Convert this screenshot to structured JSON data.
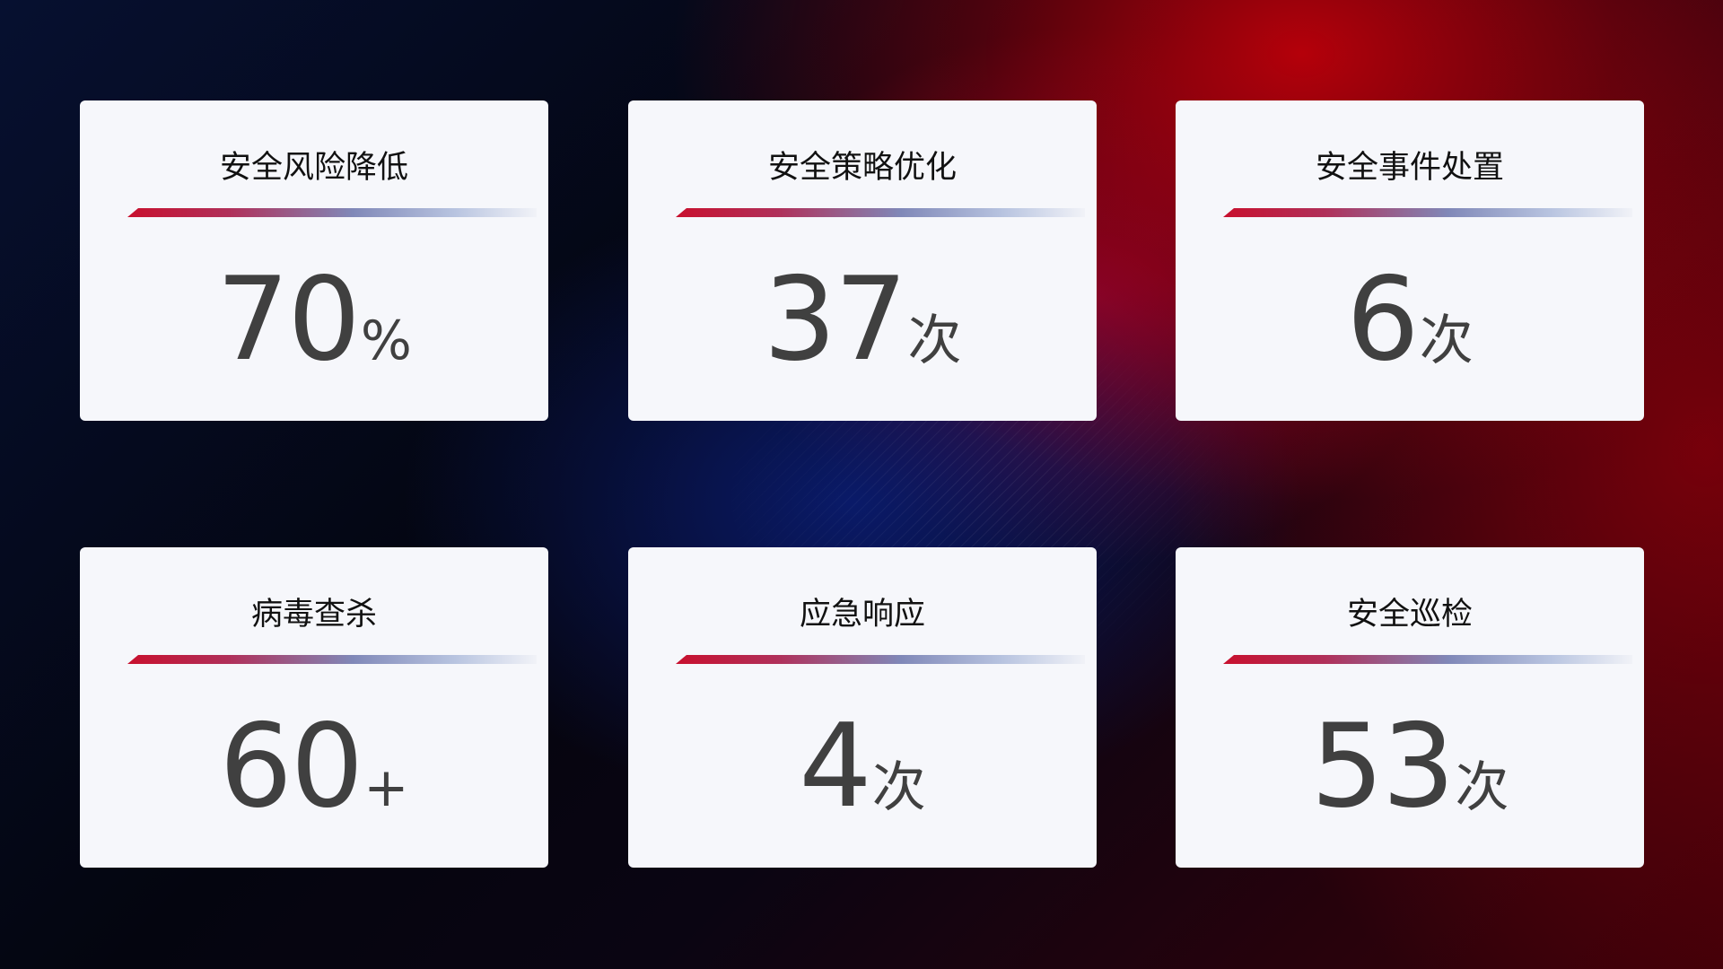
{
  "cards": [
    {
      "title": "安全风险降低",
      "value": "70",
      "unit": "%"
    },
    {
      "title": "安全策略优化",
      "value": "37",
      "unit": "次"
    },
    {
      "title": "安全事件处置",
      "value": "6",
      "unit": "次"
    },
    {
      "title": "病毒查杀",
      "value": "60",
      "unit": "+"
    },
    {
      "title": "应急响应",
      "value": "4",
      "unit": "次"
    },
    {
      "title": "安全巡检",
      "value": "53",
      "unit": "次"
    }
  ],
  "colors": {
    "accent_red": "#c8102e",
    "accent_blue": "#8088b8",
    "card_bg": "#f6f7fb",
    "value_text": "#404040"
  }
}
